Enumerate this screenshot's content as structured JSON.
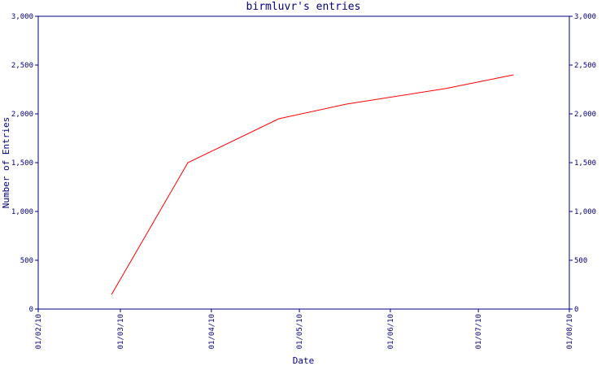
{
  "chart_data": {
    "type": "line",
    "title": "birmluvr's entries",
    "xlabel": "Date",
    "ylabel": "Number of Entries",
    "ylim": [
      0,
      3000
    ],
    "y_ticks": [
      0,
      500,
      1000,
      1500,
      2000,
      2500,
      3000
    ],
    "y_tick_labels": [
      "0",
      "500",
      "1,000",
      "1,500",
      "2,000",
      "2,500",
      "3,000"
    ],
    "x_ticks": [
      "2010-02-01",
      "2010-03-01",
      "2010-04-01",
      "2010-05-01",
      "2010-06-01",
      "2010-07-01",
      "2010-08-01"
    ],
    "x_tick_labels": [
      "01/02/10",
      "01/03/10",
      "01/04/10",
      "01/05/10",
      "01/06/10",
      "01/07/10",
      "01/08/10"
    ],
    "xlim": [
      "2010-02-01",
      "2010-08-01"
    ],
    "grid": false,
    "right_axis": true,
    "colors": {
      "axis": "#000080",
      "series": "#ff0000",
      "background": "#ffffff"
    },
    "series": [
      {
        "x": [
          "2010-02-26",
          "2010-03-24",
          "2010-04-24",
          "2010-05-17",
          "2010-06-20",
          "2010-07-13"
        ],
        "y": [
          150,
          1500,
          1950,
          2100,
          2260,
          2400
        ]
      }
    ]
  }
}
